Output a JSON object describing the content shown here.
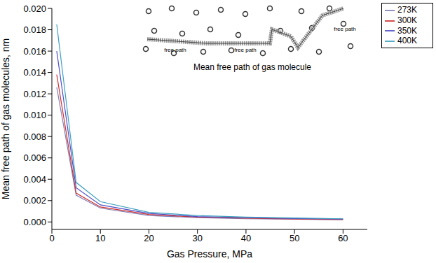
{
  "chart_data": {
    "type": "line",
    "x_label": "Gas Pressure, MPa",
    "y_label": "Mean free path of gas molecules, nm",
    "annotations": [
      "Mean free path of gas molecule",
      "free path",
      "free path",
      "free path"
    ],
    "x": [
      1,
      5,
      10,
      20,
      30,
      40,
      50,
      60
    ],
    "series": [
      {
        "name": "273K",
        "color": "#8080b8",
        "values": [
          0.0126,
          0.0025,
          0.0013,
          0.0006,
          0.0004,
          0.0003,
          0.00025,
          0.00021
        ]
      },
      {
        "name": "300K",
        "color": "#d03030",
        "values": [
          0.0138,
          0.0027,
          0.0014,
          0.0007,
          0.00045,
          0.00035,
          0.00028,
          0.00023
        ]
      },
      {
        "name": "350K",
        "color": "#5050c8",
        "values": [
          0.016,
          0.0032,
          0.0016,
          0.0008,
          0.0005,
          0.0004,
          0.00032,
          0.00027
        ]
      },
      {
        "name": "400K",
        "color": "#40a0c0",
        "values": [
          0.0185,
          0.0037,
          0.0019,
          0.0009,
          0.0006,
          0.00045,
          0.00037,
          0.0003
        ]
      }
    ],
    "xlim": [
      0,
      65
    ],
    "xticks": [
      0,
      10,
      20,
      30,
      40,
      50,
      60
    ],
    "ylim": [
      -0.0007,
      0.02
    ],
    "yticks": [
      {
        "value": 0,
        "label": "0.000"
      },
      0.002,
      0.004,
      0.006,
      0.008,
      {
        "value": 0.01,
        "label": "0.010"
      },
      0.012,
      0.014,
      0.016,
      0.018,
      {
        "value": 0.02,
        "label": "0.020"
      }
    ],
    "grid": false,
    "legend": "top-right"
  }
}
